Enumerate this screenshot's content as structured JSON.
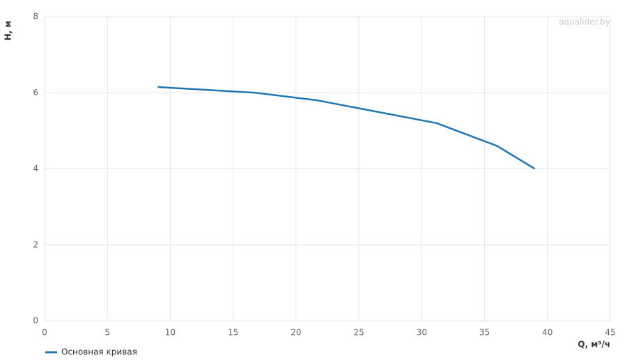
{
  "chart_data": {
    "type": "line",
    "x_label": "Q, м³/ч",
    "y_label": "H, м",
    "watermark": "aqualider.by",
    "x": [
      9,
      16.8,
      21.7,
      31.2,
      36,
      39
    ],
    "series": [
      {
        "name": "Основная кривая",
        "color": "#1f77b4",
        "values": [
          6.15,
          6.0,
          5.8,
          5.2,
          4.6,
          4.0
        ]
      }
    ],
    "xlim": [
      0,
      45
    ],
    "xticks": [
      0,
      5,
      10,
      15,
      20,
      25,
      30,
      35,
      40,
      45
    ],
    "ylim": [
      0,
      8
    ],
    "yticks": [
      0,
      2,
      4,
      6,
      8
    ],
    "grid": true
  }
}
